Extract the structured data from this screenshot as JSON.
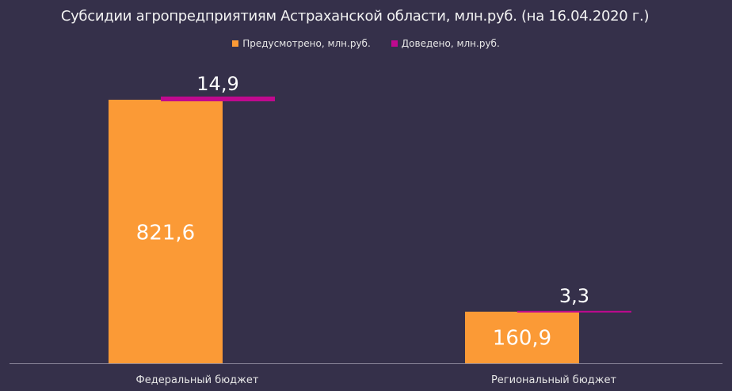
{
  "chart_data": {
    "type": "bar",
    "title": "Субсидии агропредприятиям Астраханской области, млн.руб. (на 16.04.2020 г.)",
    "categories": [
      "Федеральный бюджет",
      "Региональный бюджет"
    ],
    "series": [
      {
        "name": "Предусмотрено, млн.руб.",
        "values": [
          821.6,
          160.9
        ],
        "labels": [
          "821,6",
          "160,9"
        ],
        "color": "#fb9a36"
      },
      {
        "name": "Доведено, млн.руб.",
        "values": [
          14.9,
          3.3
        ],
        "labels": [
          "14,9",
          "3,3"
        ],
        "color": "#c0098f"
      }
    ],
    "ylim": [
      0,
      821.6
    ],
    "grid": false,
    "legend_position": "top"
  }
}
